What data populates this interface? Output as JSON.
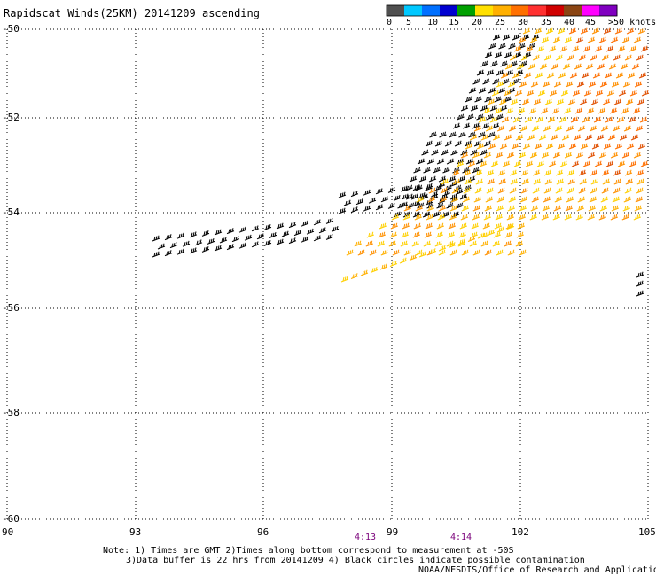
{
  "title": "Rapidscat Winds(25KM) 20141209 ascending",
  "colorbar": {
    "labels": [
      "0",
      "5",
      "10",
      "15",
      "20",
      "25",
      "30",
      "35",
      "40",
      "45",
      ">50 knots"
    ],
    "colors": [
      "#505050",
      "#00c8ff",
      "#0070ff",
      "#0000d0",
      "#00a000",
      "#ffe000",
      "#ffb000",
      "#ff7000",
      "#ff3030",
      "#d00000",
      "#8b4513",
      "#ff00ff",
      "#8000c0"
    ]
  },
  "map": {
    "lat_labels": [
      "-50",
      "-52",
      "-54",
      "-56",
      "-58",
      "-60"
    ],
    "lon_labels": [
      "90",
      "93",
      "96",
      "99",
      "102",
      "105"
    ],
    "time_labels": [
      "4:13",
      "4:14"
    ]
  },
  "notes": {
    "line1": "Note: 1) Times are GMT 2)Times along bottom correspond to measurement at -50S",
    "line2": "3)Data buffer is 22 hrs from 20141209 4) Black circles indicate possible contamination",
    "credit": "NOAA/NESDIS/Office of Research and Applications"
  }
}
